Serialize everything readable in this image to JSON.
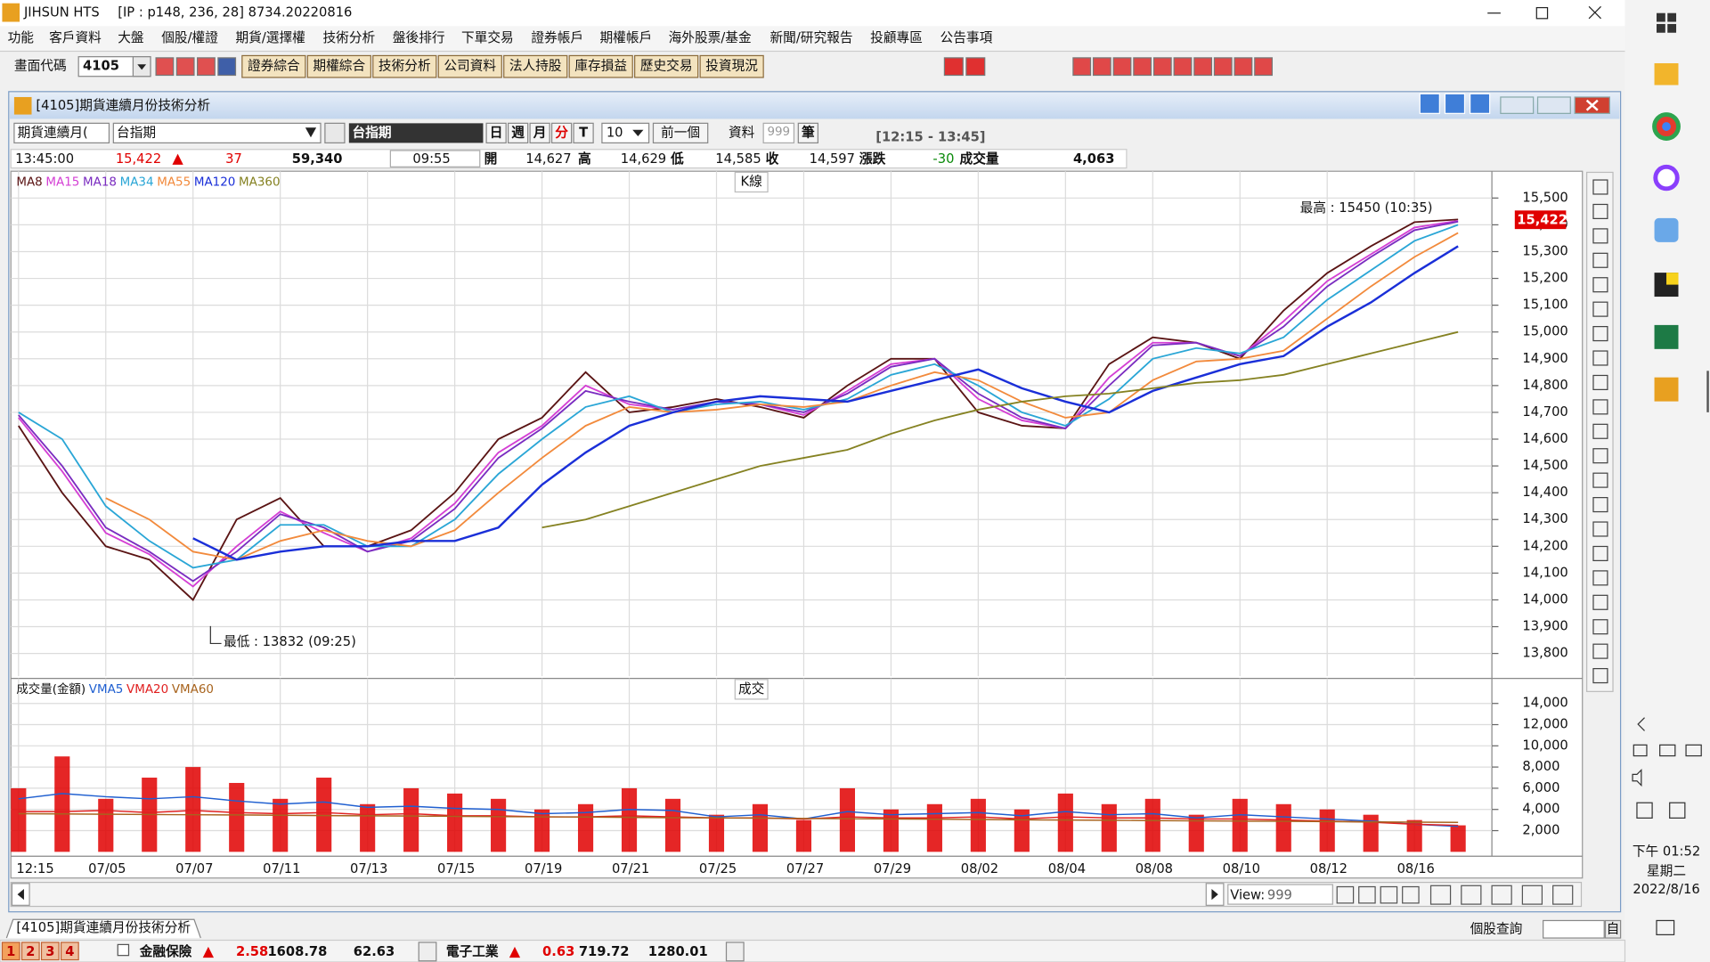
{
  "window": {
    "app": "JIHSUN HTS",
    "info": "[IP : p148, 236, 28] 8734.20220816"
  },
  "menu": [
    "功能",
    "客戶資料",
    "大盤",
    "個股/權證",
    "期貨/選擇權",
    "技術分析",
    "盤後排行",
    "下單交易",
    "證券帳戶",
    "期權帳戶",
    "海外股票/基金",
    "新聞/研究報告",
    "投顧專區",
    "公告事項"
  ],
  "toolbar": {
    "code_label": "畫面代碼",
    "code": "4105",
    "buttons": [
      "證券綜合",
      "期權綜合",
      "技術分析",
      "公司資料",
      "法人持股",
      "庫存損益",
      "歷史交易",
      "投資現況"
    ]
  },
  "panel": {
    "title": "[4105]期貨連續月份技術分析"
  },
  "controls": {
    "market": "期貨連續月(",
    "product": "台指期",
    "product_name": "台指期",
    "periods": [
      "日",
      "週",
      "月",
      "分",
      "T"
    ],
    "interval": "10",
    "prev": "前一個",
    "data_label": "資料",
    "data_count": "999",
    "data_unit": "筆",
    "time_range": "[12:15 - 13:45]"
  },
  "quote": {
    "time": "13:45:00",
    "price": "15,422",
    "change": "37",
    "total_volume": "59,340",
    "bar_time": "09:55",
    "fields": [
      {
        "label": "開",
        "value": "14,627"
      },
      {
        "label": "高",
        "value": "14,629"
      },
      {
        "label": "低",
        "value": "14,585"
      },
      {
        "label": "收",
        "value": "14,597"
      },
      {
        "label": "漲跌",
        "value": "-30"
      },
      {
        "label": "成交量",
        "value": "4,063"
      }
    ]
  },
  "chart_data": [
    {
      "type": "line",
      "title": "K線",
      "categories": [
        "12:15",
        null,
        "07/05",
        null,
        "07/07",
        null,
        "07/11",
        null,
        "07/13",
        null,
        "07/15",
        null,
        "07/19",
        null,
        "07/21",
        null,
        "07/25",
        null,
        "07/27",
        null,
        "07/29",
        null,
        "08/02",
        null,
        "08/04",
        null,
        "08/08",
        null,
        "08/10",
        null,
        "08/12",
        null,
        "08/16",
        null
      ],
      "series": [
        {
          "name": "MA8",
          "color": "#5a1414",
          "values": [
            14650,
            14400,
            14200,
            14150,
            14000,
            14300,
            14380,
            14200,
            14200,
            14260,
            14400,
            14600,
            14680,
            14850,
            14700,
            14720,
            14750,
            14720,
            14680,
            14800,
            14900,
            14900,
            14700,
            14650,
            14640,
            14880,
            14980,
            14960,
            14900,
            15080,
            15220,
            15320,
            15410,
            15420
          ]
        },
        {
          "name": "MA15",
          "color": "#d43fd4",
          "values": [
            14680,
            14480,
            14250,
            14170,
            14050,
            14200,
            14330,
            14250,
            14180,
            14230,
            14360,
            14550,
            14650,
            14800,
            14730,
            14710,
            14740,
            14730,
            14690,
            14780,
            14880,
            14900,
            14750,
            14670,
            14640,
            14830,
            14960,
            14960,
            14910,
            15040,
            15190,
            15290,
            15390,
            15415
          ]
        },
        {
          "name": "MA18",
          "color": "#7a2cc0",
          "values": [
            14690,
            14500,
            14270,
            14180,
            14070,
            14180,
            14320,
            14270,
            14180,
            14220,
            14340,
            14530,
            14640,
            14780,
            14740,
            14710,
            14740,
            14730,
            14700,
            14770,
            14870,
            14900,
            14770,
            14680,
            14640,
            14800,
            14950,
            14960,
            14910,
            15020,
            15170,
            15280,
            15380,
            15412
          ]
        },
        {
          "name": "MA34",
          "color": "#2aa6d6",
          "values": [
            14700,
            14600,
            14350,
            14220,
            14120,
            14150,
            14280,
            14280,
            14200,
            14200,
            14300,
            14470,
            14600,
            14720,
            14760,
            14700,
            14730,
            14740,
            14710,
            14750,
            14840,
            14880,
            14800,
            14700,
            14650,
            14750,
            14900,
            14940,
            14920,
            14980,
            15120,
            15230,
            15340,
            15400
          ]
        },
        {
          "name": "MA55",
          "color": "#f28a3c",
          "values": [
            null,
            null,
            14380,
            14300,
            14180,
            14150,
            14220,
            14260,
            14220,
            14200,
            14260,
            14400,
            14530,
            14650,
            14720,
            14700,
            14710,
            14730,
            14720,
            14740,
            14800,
            14850,
            14820,
            14740,
            14680,
            14700,
            14820,
            14890,
            14900,
            14930,
            15050,
            15170,
            15280,
            15370
          ]
        },
        {
          "name": "MA120",
          "color": "#1a2fd8",
          "values": [
            null,
            null,
            null,
            null,
            14230,
            14150,
            14180,
            14200,
            14200,
            14220,
            14220,
            14270,
            14430,
            14550,
            14650,
            14700,
            14740,
            14760,
            14750,
            14740,
            14780,
            14820,
            14860,
            14790,
            14740,
            14700,
            14780,
            14830,
            14880,
            14910,
            15020,
            15110,
            15220,
            15320
          ]
        },
        {
          "name": "MA360",
          "color": "#858222",
          "values": [
            null,
            null,
            null,
            null,
            null,
            null,
            null,
            null,
            null,
            null,
            null,
            null,
            14270,
            14300,
            14350,
            14400,
            14450,
            14500,
            14530,
            14560,
            14620,
            14670,
            14710,
            14740,
            14760,
            14770,
            14790,
            14810,
            14820,
            14840,
            14880,
            14920,
            14960,
            15000
          ]
        }
      ],
      "ylim": [
        13715,
        15600
      ],
      "yticks": [
        {
          "value": 13800,
          "label": "13,800"
        },
        {
          "value": 13900,
          "label": "13,900"
        },
        {
          "value": 14000,
          "label": "14,000"
        },
        {
          "value": 14100,
          "label": "14,100"
        },
        {
          "value": 14200,
          "label": "14,200"
        },
        {
          "value": 14300,
          "label": "14,300"
        },
        {
          "value": 14400,
          "label": "14,400"
        },
        {
          "value": 14500,
          "label": "14,500"
        },
        {
          "value": 14600,
          "label": "14,600"
        },
        {
          "value": 14700,
          "label": "14,700"
        },
        {
          "value": 14800,
          "label": "14,800"
        },
        {
          "value": 14900,
          "label": "14,900"
        },
        {
          "value": 15000,
          "label": "15,000"
        },
        {
          "value": 15100,
          "label": "15,100"
        },
        {
          "value": 15200,
          "label": "15,200"
        },
        {
          "value": 15300,
          "label": "15,300"
        },
        {
          "value": 15400,
          "label": "15,400"
        },
        {
          "value": 15500,
          "label": "15,500"
        }
      ],
      "grid": true,
      "annotations": [
        "最高 : 15450 (10:35)",
        "最低 : 13832 (09:25)",
        "15,422"
      ]
    },
    {
      "type": "bar",
      "title": "成交",
      "series": [
        {
          "name": "成交量(金額)",
          "color": "#e00000",
          "values": [
            6000,
            9000,
            5000,
            7000,
            8000,
            6500,
            5000,
            7000,
            4500,
            6000,
            5500,
            5000,
            4000,
            4500,
            6000,
            5000,
            3500,
            4500,
            3000,
            6000,
            4000,
            4500,
            5000,
            4000,
            5500,
            4500,
            5000,
            3500,
            5000,
            4500,
            4000,
            3500,
            3000,
            2500
          ]
        },
        {
          "name": "VMA5",
          "color": "#1f5fd0",
          "values": [
            5000,
            5500,
            5200,
            5000,
            5200,
            4800,
            4500,
            4700,
            4200,
            4300,
            4100,
            4000,
            3600,
            3700,
            4000,
            3900,
            3300,
            3500,
            3100,
            3800,
            3500,
            3600,
            3700,
            3400,
            3800,
            3500,
            3600,
            3200,
            3500,
            3300,
            3100,
            2900,
            2600,
            2400
          ]
        },
        {
          "name": "VMA20",
          "color": "#e02020",
          "values": [
            3800,
            3800,
            3900,
            3700,
            3900,
            3700,
            3600,
            3700,
            3500,
            3600,
            3400,
            3400,
            3300,
            3300,
            3400,
            3300,
            3200,
            3200,
            3100,
            3300,
            3200,
            3200,
            3300,
            3100,
            3300,
            3200,
            3200,
            3100,
            3100,
            3000,
            2900,
            2800,
            2600,
            2500
          ]
        },
        {
          "name": "VMA60",
          "color": "#a8641e",
          "values": [
            3600,
            3580,
            3550,
            3520,
            3500,
            3480,
            3450,
            3420,
            3400,
            3380,
            3350,
            3320,
            3300,
            3280,
            3250,
            3220,
            3200,
            3180,
            3150,
            3120,
            3100,
            3080,
            3050,
            3020,
            3000,
            2980,
            2950,
            2920,
            2900,
            2880,
            2850,
            2820,
            2800,
            2780
          ]
        }
      ],
      "ylim": [
        0,
        16360
      ],
      "yticks": [
        {
          "value": 2000,
          "label": "2,000"
        },
        {
          "value": 4000,
          "label": "4,000"
        },
        {
          "value": 6000,
          "label": "6,000"
        },
        {
          "value": 8000,
          "label": "8,000"
        },
        {
          "value": 10000,
          "label": "10,000"
        },
        {
          "value": 12000,
          "label": "12,000"
        },
        {
          "value": 14000,
          "label": "14,000"
        }
      ],
      "grid": true
    }
  ],
  "scrollbar": {
    "view_label": "View:",
    "view_value": "999"
  },
  "tabs": {
    "active": "[4105]期貨連續月份技術分析",
    "search_label": "個股查詢",
    "search_button": "自"
  },
  "status": {
    "pages": [
      "1",
      "2",
      "3",
      "4"
    ],
    "indices": [
      {
        "name": "金融保險",
        "change": "2.58",
        "value": "1608.78",
        "amount": "62.63"
      },
      {
        "name": "電子工業",
        "change": "0.63",
        "value": "719.72",
        "amount": "1280.01"
      }
    ]
  },
  "taskbar": {
    "time": "下午 01:52",
    "weekday": "星期二",
    "date": "2022/8/16"
  }
}
